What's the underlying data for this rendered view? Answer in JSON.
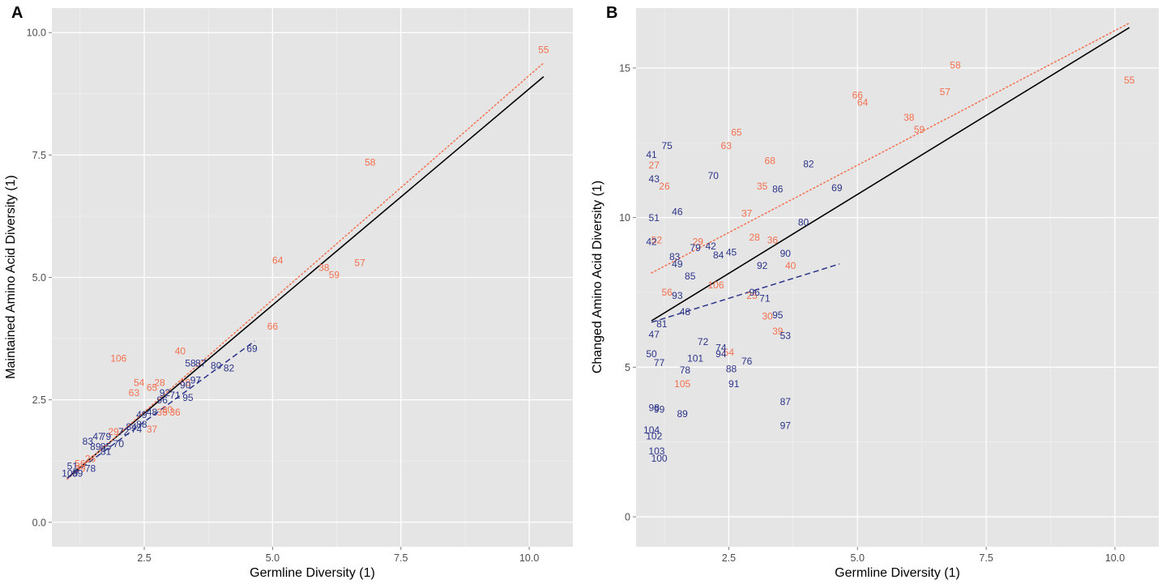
{
  "colors": {
    "panel_bg": "#e5e5e5",
    "grid": "#ffffff",
    "orange": "#f3704f",
    "blue": "#2c3489",
    "black": "#000000"
  },
  "chart_data": [
    {
      "panel": "A",
      "type": "scatter",
      "xlabel": "Germline Diversity (1)",
      "ylabel": "Maintained Amino Acid Diversity (1)",
      "xlim": [
        0.7,
        10.85
      ],
      "ylim": [
        -0.5,
        10.5
      ],
      "x_ticks": [
        2.5,
        5.0,
        7.5,
        10.0
      ],
      "x_tick_labels": [
        "2.5",
        "5.0",
        "7.5",
        "10.0"
      ],
      "y_ticks": [
        0.0,
        2.5,
        5.0,
        7.5,
        10.0
      ],
      "y_tick_labels": [
        "0.0",
        "2.5",
        "5.0",
        "7.5",
        "10.0"
      ],
      "series": [
        {
          "name": "orange",
          "color_key": "orange",
          "points": [
            {
              "label": "55",
              "x": 10.28,
              "y": 9.65
            },
            {
              "label": "58",
              "x": 6.9,
              "y": 7.35
            },
            {
              "label": "64",
              "x": 5.1,
              "y": 5.35
            },
            {
              "label": "57",
              "x": 6.7,
              "y": 5.3
            },
            {
              "label": "38",
              "x": 6.0,
              "y": 5.2
            },
            {
              "label": "59",
              "x": 6.2,
              "y": 5.05
            },
            {
              "label": "66",
              "x": 5.0,
              "y": 4.0
            },
            {
              "label": "40",
              "x": 3.2,
              "y": 3.5
            },
            {
              "label": "106",
              "x": 2.0,
              "y": 3.35
            },
            {
              "label": "54",
              "x": 2.4,
              "y": 2.85
            },
            {
              "label": "28",
              "x": 2.8,
              "y": 2.85
            },
            {
              "label": "65",
              "x": 2.65,
              "y": 2.75
            },
            {
              "label": "63",
              "x": 2.3,
              "y": 2.65
            },
            {
              "label": "68",
              "x": 3.3,
              "y": 2.85
            },
            {
              "label": "36",
              "x": 3.1,
              "y": 2.25
            },
            {
              "label": "35",
              "x": 2.85,
              "y": 2.25
            },
            {
              "label": "30",
              "x": 2.95,
              "y": 2.3
            },
            {
              "label": "37",
              "x": 2.65,
              "y": 1.9
            },
            {
              "label": "29",
              "x": 1.9,
              "y": 1.85
            },
            {
              "label": "26",
              "x": 1.45,
              "y": 1.3
            },
            {
              "label": "56",
              "x": 1.25,
              "y": 1.2
            },
            {
              "label": "39",
              "x": 1.25,
              "y": 1.1
            }
          ]
        },
        {
          "name": "blue",
          "color_key": "blue",
          "points": [
            {
              "label": "69",
              "x": 4.6,
              "y": 3.55
            },
            {
              "label": "80",
              "x": 3.9,
              "y": 3.2
            },
            {
              "label": "82",
              "x": 4.15,
              "y": 3.15
            },
            {
              "label": "58",
              "x": 3.4,
              "y": 3.25
            },
            {
              "label": "87",
              "x": 3.6,
              "y": 3.25
            },
            {
              "label": "97",
              "x": 3.5,
              "y": 2.9
            },
            {
              "label": "90",
              "x": 3.3,
              "y": 2.8
            },
            {
              "label": "92",
              "x": 2.9,
              "y": 2.65
            },
            {
              "label": "71",
              "x": 3.1,
              "y": 2.6
            },
            {
              "label": "95",
              "x": 3.35,
              "y": 2.55
            },
            {
              "label": "96",
              "x": 2.85,
              "y": 2.5
            },
            {
              "label": "48",
              "x": 2.65,
              "y": 2.25
            },
            {
              "label": "49",
              "x": 2.45,
              "y": 2.2
            },
            {
              "label": "88",
              "x": 2.45,
              "y": 2.0
            },
            {
              "label": "84",
              "x": 2.25,
              "y": 1.95
            },
            {
              "label": "74",
              "x": 2.35,
              "y": 1.9
            },
            {
              "label": "72",
              "x": 2.1,
              "y": 1.85
            },
            {
              "label": "47",
              "x": 1.6,
              "y": 1.75
            },
            {
              "label": "79",
              "x": 1.75,
              "y": 1.75
            },
            {
              "label": "83",
              "x": 1.4,
              "y": 1.65
            },
            {
              "label": "70",
              "x": 2.0,
              "y": 1.6
            },
            {
              "label": "89",
              "x": 1.55,
              "y": 1.55
            },
            {
              "label": "85",
              "x": 1.75,
              "y": 1.55
            },
            {
              "label": "81",
              "x": 1.75,
              "y": 1.45
            },
            {
              "label": "51",
              "x": 1.1,
              "y": 1.15
            },
            {
              "label": "99",
              "x": 1.2,
              "y": 1.0
            },
            {
              "label": "100",
              "x": 1.05,
              "y": 1.0
            },
            {
              "label": "78",
              "x": 1.45,
              "y": 1.1
            }
          ]
        }
      ],
      "lines": [
        {
          "name": "overall fit",
          "color_key": "black",
          "style": "solid",
          "x": [
            1.0,
            10.28
          ],
          "y": [
            0.9,
            9.1
          ]
        },
        {
          "name": "orange fit",
          "color_key": "orange",
          "style": "dotted",
          "x": [
            1.0,
            10.28
          ],
          "y": [
            0.88,
            9.38
          ]
        },
        {
          "name": "blue fit",
          "color_key": "blue",
          "style": "dashed",
          "x": [
            1.0,
            4.65
          ],
          "y": [
            0.9,
            3.7
          ]
        }
      ]
    },
    {
      "panel": "B",
      "type": "scatter",
      "xlabel": "Germline Diversity (1)",
      "ylabel": "Changed Amino Acid Diversity (1)",
      "xlim": [
        0.7,
        10.85
      ],
      "ylim": [
        -1.0,
        17.0
      ],
      "x_ticks": [
        2.5,
        5.0,
        7.5,
        10.0
      ],
      "x_tick_labels": [
        "2.5",
        "5.0",
        "7.5",
        "10.0"
      ],
      "y_ticks": [
        0,
        5,
        10,
        15
      ],
      "y_tick_labels": [
        "0",
        "5",
        "10",
        "15"
      ],
      "series": [
        {
          "name": "orange",
          "color_key": "orange",
          "points": [
            {
              "label": "58",
              "x": 6.9,
              "y": 15.1
            },
            {
              "label": "55",
              "x": 10.28,
              "y": 14.6
            },
            {
              "label": "57",
              "x": 6.7,
              "y": 14.2
            },
            {
              "label": "66",
              "x": 5.0,
              "y": 14.1
            },
            {
              "label": "64",
              "x": 5.1,
              "y": 13.85
            },
            {
              "label": "38",
              "x": 6.0,
              "y": 13.35
            },
            {
              "label": "59",
              "x": 6.2,
              "y": 12.95
            },
            {
              "label": "65",
              "x": 2.65,
              "y": 12.85
            },
            {
              "label": "63",
              "x": 2.45,
              "y": 12.4
            },
            {
              "label": "27",
              "x": 1.05,
              "y": 11.75
            },
            {
              "label": "68",
              "x": 3.3,
              "y": 11.9
            },
            {
              "label": "26",
              "x": 1.25,
              "y": 11.05
            },
            {
              "label": "35",
              "x": 3.15,
              "y": 11.05
            },
            {
              "label": "37",
              "x": 2.85,
              "y": 10.15
            },
            {
              "label": "28",
              "x": 3.0,
              "y": 9.35
            },
            {
              "label": "36",
              "x": 3.35,
              "y": 9.25
            },
            {
              "label": "29",
              "x": 1.9,
              "y": 9.2
            },
            {
              "label": "52",
              "x": 1.1,
              "y": 9.25
            },
            {
              "label": "40",
              "x": 3.7,
              "y": 8.4
            },
            {
              "label": "106",
              "x": 2.25,
              "y": 7.75
            },
            {
              "label": "56",
              "x": 1.3,
              "y": 7.5
            },
            {
              "label": "25",
              "x": 2.95,
              "y": 7.4
            },
            {
              "label": "30",
              "x": 3.25,
              "y": 6.7
            },
            {
              "label": "39",
              "x": 3.45,
              "y": 6.2
            },
            {
              "label": "54",
              "x": 2.5,
              "y": 5.5
            },
            {
              "label": "105",
              "x": 1.6,
              "y": 4.45
            }
          ]
        },
        {
          "name": "blue",
          "color_key": "blue",
          "points": [
            {
              "label": "75",
              "x": 1.3,
              "y": 12.4
            },
            {
              "label": "41",
              "x": 1.0,
              "y": 12.1
            },
            {
              "label": "43",
              "x": 1.05,
              "y": 11.3
            },
            {
              "label": "82",
              "x": 4.05,
              "y": 11.8
            },
            {
              "label": "86",
              "x": 3.45,
              "y": 10.95
            },
            {
              "label": "69",
              "x": 4.6,
              "y": 11.0
            },
            {
              "label": "70",
              "x": 2.2,
              "y": 11.4
            },
            {
              "label": "46",
              "x": 1.5,
              "y": 10.2
            },
            {
              "label": "51",
              "x": 1.05,
              "y": 10.0
            },
            {
              "label": "80",
              "x": 3.95,
              "y": 9.85
            },
            {
              "label": "42",
              "x": 1.0,
              "y": 9.2
            },
            {
              "label": "79",
              "x": 1.85,
              "y": 9.0
            },
            {
              "label": "42",
              "x": 2.15,
              "y": 9.05
            },
            {
              "label": "83",
              "x": 1.45,
              "y": 8.7
            },
            {
              "label": "45",
              "x": 2.55,
              "y": 8.85
            },
            {
              "label": "84",
              "x": 2.3,
              "y": 8.75
            },
            {
              "label": "90",
              "x": 3.6,
              "y": 8.8
            },
            {
              "label": "49",
              "x": 1.5,
              "y": 8.45
            },
            {
              "label": "92",
              "x": 3.15,
              "y": 8.4
            },
            {
              "label": "85",
              "x": 1.75,
              "y": 8.05
            },
            {
              "label": "93",
              "x": 1.5,
              "y": 7.4
            },
            {
              "label": "96",
              "x": 3.0,
              "y": 7.5
            },
            {
              "label": "71",
              "x": 3.2,
              "y": 7.3
            },
            {
              "label": "48",
              "x": 1.65,
              "y": 6.85
            },
            {
              "label": "95",
              "x": 3.45,
              "y": 6.75
            },
            {
              "label": "81",
              "x": 1.2,
              "y": 6.45
            },
            {
              "label": "47",
              "x": 1.05,
              "y": 6.1
            },
            {
              "label": "53",
              "x": 3.6,
              "y": 6.05
            },
            {
              "label": "72",
              "x": 2.0,
              "y": 5.85
            },
            {
              "label": "74",
              "x": 2.35,
              "y": 5.65
            },
            {
              "label": "94",
              "x": 2.35,
              "y": 5.45
            },
            {
              "label": "50",
              "x": 1.0,
              "y": 5.45
            },
            {
              "label": "101",
              "x": 1.85,
              "y": 5.3
            },
            {
              "label": "76",
              "x": 2.85,
              "y": 5.2
            },
            {
              "label": "77",
              "x": 1.15,
              "y": 5.15
            },
            {
              "label": "78",
              "x": 1.65,
              "y": 4.9
            },
            {
              "label": "88",
              "x": 2.55,
              "y": 4.95
            },
            {
              "label": "91",
              "x": 2.6,
              "y": 4.45
            },
            {
              "label": "87",
              "x": 3.6,
              "y": 3.85
            },
            {
              "label": "98",
              "x": 1.05,
              "y": 3.65
            },
            {
              "label": "99",
              "x": 1.15,
              "y": 3.6
            },
            {
              "label": "89",
              "x": 1.6,
              "y": 3.45
            },
            {
              "label": "97",
              "x": 3.6,
              "y": 3.05
            },
            {
              "label": "104",
              "x": 1.0,
              "y": 2.9
            },
            {
              "label": "102",
              "x": 1.05,
              "y": 2.7
            },
            {
              "label": "103",
              "x": 1.1,
              "y": 2.2
            },
            {
              "label": "100",
              "x": 1.15,
              "y": 1.95
            }
          ]
        }
      ],
      "lines": [
        {
          "name": "overall fit",
          "color_key": "black",
          "style": "solid",
          "x": [
            1.0,
            10.28
          ],
          "y": [
            6.55,
            16.35
          ]
        },
        {
          "name": "orange fit",
          "color_key": "orange",
          "style": "dotted",
          "x": [
            1.0,
            10.28
          ],
          "y": [
            8.15,
            16.5
          ]
        },
        {
          "name": "blue fit",
          "color_key": "blue",
          "style": "dashed",
          "x": [
            1.0,
            4.65
          ],
          "y": [
            6.5,
            8.45
          ]
        }
      ]
    }
  ]
}
